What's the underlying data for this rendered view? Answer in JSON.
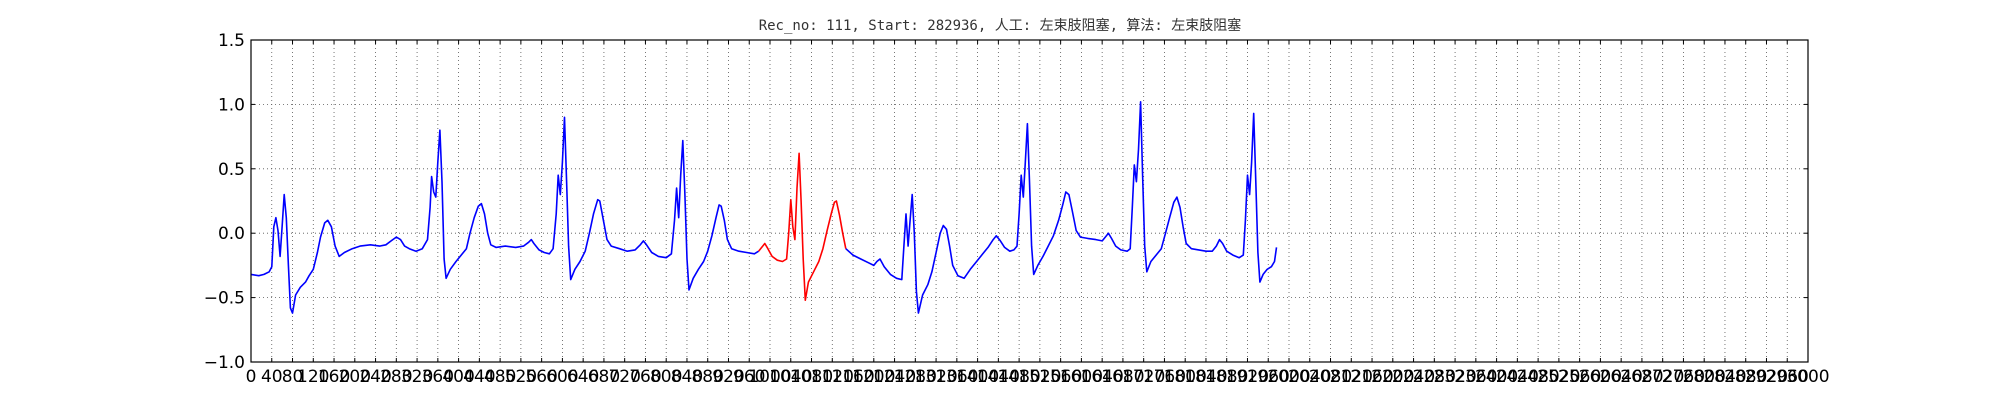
{
  "chart_data": {
    "type": "line",
    "title": "Rec_no: 111, Start: 282936, 人工: 左束肢阻塞, 算法: 左束肢阻塞",
    "xlabel": "",
    "ylabel": "",
    "xlim": [
      0,
      3000
    ],
    "ylim": [
      -1.0,
      1.5
    ],
    "grid": true,
    "grid_style": "dotted",
    "x_ticks": [
      0,
      40,
      80,
      120,
      160,
      200,
      240,
      280,
      320,
      360,
      400,
      440,
      480,
      520,
      560,
      600,
      640,
      680,
      720,
      760,
      800,
      840,
      880,
      920,
      960,
      1000,
      1040,
      1080,
      1120,
      1160,
      1200,
      1240,
      1280,
      1320,
      1360,
      1400,
      1440,
      1480,
      1520,
      1560,
      1600,
      1640,
      1680,
      1720,
      1760,
      1800,
      1840,
      1880,
      1920,
      1960,
      2000,
      2040,
      2080,
      2120,
      2160,
      2200,
      2240,
      2280,
      2320,
      2360,
      2400,
      2440,
      2480,
      2520,
      2560,
      2600,
      2640,
      2680,
      2720,
      2760,
      2800,
      2840,
      2880,
      2920,
      2960,
      3000
    ],
    "x_tick_labels": [
      "0",
      "40",
      "80",
      "120",
      "160",
      "200",
      "240",
      "280",
      "320",
      "360",
      "400",
      "440",
      "480",
      "520",
      "560",
      "600",
      "640",
      "680",
      "720",
      "760",
      "800",
      "840",
      "880",
      "920",
      "960",
      "1000",
      "1040",
      "1080",
      "1120",
      "1160",
      "1200",
      "1240",
      "1280",
      "1320",
      "1360",
      "1400",
      "1440",
      "1480",
      "1520",
      "1560",
      "1600",
      "1640",
      "1680",
      "1720",
      "1760",
      "1800",
      "1840",
      "1880",
      "1920",
      "1960",
      "2000",
      "2040",
      "2080",
      "2120",
      "2160",
      "2200",
      "2240",
      "2280",
      "2320",
      "2360",
      "2400",
      "2440",
      "2480",
      "2520",
      "2560",
      "2600",
      "2640",
      "2680",
      "2720",
      "2760",
      "2800",
      "2840",
      "2880",
      "2920",
      "2960",
      "3000"
    ],
    "y_ticks": [
      1.5,
      1.0,
      0.5,
      0.0,
      -0.5,
      -1.0
    ],
    "y_tick_labels": [
      "1.5",
      "1.0",
      "0.5",
      "0.0",
      "−0.5",
      "−1.0"
    ],
    "series": [
      {
        "color": "#0000ff",
        "segment": "pre",
        "points": [
          [
            0,
            -0.32
          ],
          [
            15,
            -0.33
          ],
          [
            25,
            -0.32
          ],
          [
            35,
            -0.3
          ],
          [
            40,
            -0.26
          ],
          [
            44,
            0.05
          ],
          [
            48,
            0.12
          ],
          [
            52,
            0.02
          ],
          [
            56,
            -0.18
          ],
          [
            60,
            0.05
          ],
          [
            64,
            0.3
          ],
          [
            68,
            0.12
          ],
          [
            72,
            -0.25
          ],
          [
            76,
            -0.58
          ],
          [
            80,
            -0.62
          ],
          [
            86,
            -0.48
          ],
          [
            95,
            -0.42
          ],
          [
            105,
            -0.38
          ],
          [
            112,
            -0.33
          ],
          [
            120,
            -0.28
          ],
          [
            128,
            -0.15
          ],
          [
            134,
            -0.03
          ],
          [
            142,
            0.08
          ],
          [
            148,
            0.1
          ],
          [
            155,
            0.05
          ],
          [
            162,
            -0.1
          ],
          [
            170,
            -0.18
          ],
          [
            180,
            -0.15
          ],
          [
            195,
            -0.12
          ],
          [
            210,
            -0.1
          ],
          [
            230,
            -0.09
          ],
          [
            248,
            -0.1
          ],
          [
            260,
            -0.09
          ],
          [
            270,
            -0.06
          ],
          [
            280,
            -0.03
          ],
          [
            288,
            -0.05
          ],
          [
            296,
            -0.1
          ],
          [
            305,
            -0.12
          ],
          [
            318,
            -0.14
          ],
          [
            330,
            -0.12
          ],
          [
            340,
            -0.05
          ],
          [
            345,
            0.2
          ],
          [
            348,
            0.44
          ],
          [
            352,
            0.32
          ],
          [
            356,
            0.28
          ],
          [
            360,
            0.55
          ],
          [
            364,
            0.8
          ],
          [
            368,
            0.4
          ],
          [
            372,
            -0.2
          ],
          [
            376,
            -0.35
          ],
          [
            384,
            -0.28
          ],
          [
            395,
            -0.22
          ],
          [
            405,
            -0.17
          ],
          [
            415,
            -0.12
          ],
          [
            422,
            0.0
          ],
          [
            430,
            0.12
          ],
          [
            438,
            0.21
          ],
          [
            444,
            0.23
          ],
          [
            450,
            0.15
          ],
          [
            456,
            0.0
          ],
          [
            462,
            -0.09
          ],
          [
            472,
            -0.11
          ],
          [
            490,
            -0.1
          ],
          [
            510,
            -0.11
          ],
          [
            525,
            -0.1
          ],
          [
            535,
            -0.07
          ],
          [
            540,
            -0.05
          ],
          [
            545,
            -0.08
          ],
          [
            555,
            -0.13
          ],
          [
            565,
            -0.15
          ],
          [
            575,
            -0.16
          ],
          [
            582,
            -0.12
          ],
          [
            588,
            0.15
          ],
          [
            592,
            0.45
          ],
          [
            596,
            0.3
          ],
          [
            600,
            0.55
          ],
          [
            604,
            0.9
          ],
          [
            608,
            0.4
          ],
          [
            612,
            -0.1
          ],
          [
            616,
            -0.36
          ],
          [
            624,
            -0.28
          ],
          [
            634,
            -0.22
          ],
          [
            644,
            -0.14
          ],
          [
            652,
            0.0
          ],
          [
            660,
            0.15
          ],
          [
            668,
            0.26
          ],
          [
            672,
            0.25
          ],
          [
            678,
            0.12
          ],
          [
            686,
            -0.05
          ],
          [
            694,
            -0.1
          ],
          [
            710,
            -0.12
          ],
          [
            725,
            -0.14
          ],
          [
            740,
            -0.13
          ],
          [
            750,
            -0.09
          ],
          [
            756,
            -0.06
          ],
          [
            762,
            -0.09
          ],
          [
            772,
            -0.15
          ],
          [
            785,
            -0.18
          ],
          [
            800,
            -0.19
          ],
          [
            810,
            -0.16
          ],
          [
            816,
            0.1
          ],
          [
            820,
            0.35
          ],
          [
            824,
            0.12
          ],
          [
            828,
            0.45
          ],
          [
            832,
            0.72
          ],
          [
            836,
            0.3
          ],
          [
            840,
            -0.2
          ],
          [
            844,
            -0.44
          ],
          [
            852,
            -0.35
          ],
          [
            862,
            -0.28
          ],
          [
            872,
            -0.22
          ],
          [
            880,
            -0.14
          ],
          [
            888,
            -0.02
          ],
          [
            896,
            0.12
          ],
          [
            902,
            0.22
          ],
          [
            906,
            0.21
          ],
          [
            912,
            0.1
          ],
          [
            918,
            -0.05
          ],
          [
            926,
            -0.12
          ],
          [
            940,
            -0.14
          ],
          [
            955,
            -0.15
          ],
          [
            970,
            -0.16
          ],
          [
            978,
            -0.14
          ]
        ]
      },
      {
        "color": "#ff0000",
        "segment": "highlight",
        "points": [
          [
            978,
            -0.14
          ],
          [
            984,
            -0.11
          ],
          [
            990,
            -0.08
          ],
          [
            996,
            -0.12
          ],
          [
            1004,
            -0.18
          ],
          [
            1014,
            -0.21
          ],
          [
            1024,
            -0.22
          ],
          [
            1032,
            -0.2
          ],
          [
            1036,
            0.0
          ],
          [
            1040,
            0.26
          ],
          [
            1044,
            0.05
          ],
          [
            1048,
            -0.05
          ],
          [
            1052,
            0.35
          ],
          [
            1056,
            0.62
          ],
          [
            1060,
            0.25
          ],
          [
            1064,
            -0.2
          ],
          [
            1068,
            -0.52
          ],
          [
            1074,
            -0.38
          ],
          [
            1084,
            -0.3
          ],
          [
            1094,
            -0.22
          ],
          [
            1102,
            -0.12
          ],
          [
            1110,
            0.02
          ],
          [
            1118,
            0.15
          ],
          [
            1124,
            0.24
          ],
          [
            1128,
            0.25
          ],
          [
            1134,
            0.14
          ],
          [
            1140,
            0.0
          ],
          [
            1146,
            -0.12
          ]
        ]
      },
      {
        "color": "#0000ff",
        "segment": "post",
        "points": [
          [
            1146,
            -0.12
          ],
          [
            1160,
            -0.17
          ],
          [
            1175,
            -0.2
          ],
          [
            1190,
            -0.23
          ],
          [
            1200,
            -0.25
          ],
          [
            1206,
            -0.22
          ],
          [
            1212,
            -0.2
          ],
          [
            1220,
            -0.26
          ],
          [
            1232,
            -0.32
          ],
          [
            1244,
            -0.35
          ],
          [
            1254,
            -0.36
          ],
          [
            1258,
            -0.1
          ],
          [
            1262,
            0.15
          ],
          [
            1266,
            -0.1
          ],
          [
            1270,
            0.1
          ],
          [
            1274,
            0.3
          ],
          [
            1278,
            0.0
          ],
          [
            1282,
            -0.45
          ],
          [
            1286,
            -0.62
          ],
          [
            1294,
            -0.48
          ],
          [
            1304,
            -0.4
          ],
          [
            1312,
            -0.3
          ],
          [
            1320,
            -0.15
          ],
          [
            1328,
            0.0
          ],
          [
            1334,
            0.06
          ],
          [
            1340,
            0.03
          ],
          [
            1346,
            -0.1
          ],
          [
            1352,
            -0.25
          ],
          [
            1362,
            -0.33
          ],
          [
            1374,
            -0.35
          ],
          [
            1386,
            -0.28
          ],
          [
            1398,
            -0.22
          ],
          [
            1410,
            -0.16
          ],
          [
            1420,
            -0.11
          ],
          [
            1430,
            -0.05
          ],
          [
            1436,
            -0.02
          ],
          [
            1444,
            -0.06
          ],
          [
            1452,
            -0.11
          ],
          [
            1462,
            -0.14
          ],
          [
            1470,
            -0.13
          ],
          [
            1476,
            -0.1
          ],
          [
            1480,
            0.15
          ],
          [
            1484,
            0.45
          ],
          [
            1488,
            0.28
          ],
          [
            1492,
            0.55
          ],
          [
            1496,
            0.85
          ],
          [
            1500,
            0.4
          ],
          [
            1504,
            -0.1
          ],
          [
            1508,
            -0.32
          ],
          [
            1516,
            -0.25
          ],
          [
            1526,
            -0.18
          ],
          [
            1536,
            -0.1
          ],
          [
            1546,
            -0.02
          ],
          [
            1556,
            0.1
          ],
          [
            1564,
            0.22
          ],
          [
            1570,
            0.32
          ],
          [
            1576,
            0.3
          ],
          [
            1582,
            0.18
          ],
          [
            1590,
            0.02
          ],
          [
            1598,
            -0.03
          ],
          [
            1612,
            -0.04
          ],
          [
            1628,
            -0.05
          ],
          [
            1640,
            -0.06
          ],
          [
            1646,
            -0.03
          ],
          [
            1652,
            0.0
          ],
          [
            1658,
            -0.04
          ],
          [
            1666,
            -0.1
          ],
          [
            1676,
            -0.13
          ],
          [
            1688,
            -0.14
          ],
          [
            1694,
            -0.12
          ],
          [
            1698,
            0.2
          ],
          [
            1702,
            0.53
          ],
          [
            1706,
            0.4
          ],
          [
            1710,
            0.65
          ],
          [
            1714,
            1.02
          ],
          [
            1718,
            0.45
          ],
          [
            1722,
            -0.1
          ],
          [
            1726,
            -0.3
          ],
          [
            1734,
            -0.22
          ],
          [
            1744,
            -0.17
          ],
          [
            1754,
            -0.12
          ],
          [
            1762,
            0.0
          ],
          [
            1770,
            0.12
          ],
          [
            1778,
            0.24
          ],
          [
            1784,
            0.28
          ],
          [
            1790,
            0.2
          ],
          [
            1796,
            0.05
          ],
          [
            1802,
            -0.08
          ],
          [
            1812,
            -0.12
          ],
          [
            1826,
            -0.13
          ],
          [
            1840,
            -0.14
          ],
          [
            1852,
            -0.14
          ],
          [
            1860,
            -0.1
          ],
          [
            1866,
            -0.05
          ],
          [
            1872,
            -0.08
          ],
          [
            1880,
            -0.14
          ],
          [
            1892,
            -0.17
          ],
          [
            1904,
            -0.19
          ],
          [
            1912,
            -0.17
          ],
          [
            1916,
            0.1
          ],
          [
            1920,
            0.45
          ],
          [
            1924,
            0.3
          ],
          [
            1928,
            0.55
          ],
          [
            1932,
            0.93
          ],
          [
            1936,
            0.4
          ],
          [
            1940,
            -0.15
          ],
          [
            1944,
            -0.38
          ],
          [
            1950,
            -0.32
          ],
          [
            1958,
            -0.28
          ],
          [
            1966,
            -0.26
          ],
          [
            1972,
            -0.22
          ],
          [
            1976,
            -0.11
          ]
        ]
      }
    ]
  }
}
